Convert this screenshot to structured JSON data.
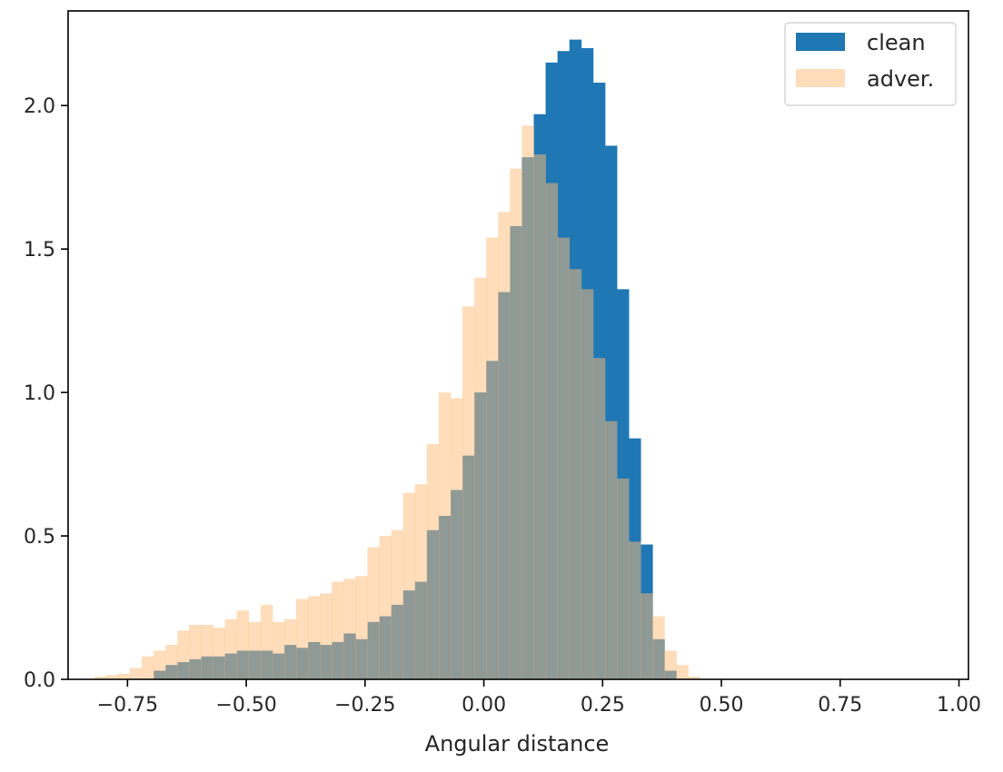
{
  "chart_data": {
    "type": "histogram",
    "title": "",
    "xlabel": "Angular distance",
    "ylabel": "",
    "xlim": [
      -0.875,
      1.02
    ],
    "ylim": [
      0.0,
      2.33
    ],
    "x_ticks": [
      -0.75,
      -0.5,
      -0.25,
      0.0,
      0.25,
      0.5,
      0.75,
      1.0
    ],
    "x_tick_labels": [
      "−0.75",
      "−0.50",
      "−0.25",
      "0.00",
      "0.25",
      "0.50",
      "0.75",
      "1.00"
    ],
    "y_ticks": [
      0.0,
      0.5,
      1.0,
      1.5,
      2.0
    ],
    "y_tick_labels": [
      "0.0",
      "0.5",
      "1.0",
      "1.5",
      "2.0"
    ],
    "grid": false,
    "legend_position": "top-right",
    "colors": {
      "clean": "#1f77b4",
      "adver": "#ffbb78",
      "overlap": "#8c7a5f",
      "axis": "#000000"
    },
    "series": [
      {
        "name": "clean",
        "bin_start": -0.695,
        "bin_width": 0.025,
        "values": [
          0.03,
          0.05,
          0.06,
          0.07,
          0.08,
          0.08,
          0.09,
          0.1,
          0.1,
          0.1,
          0.09,
          0.12,
          0.11,
          0.13,
          0.12,
          0.13,
          0.16,
          0.14,
          0.2,
          0.22,
          0.26,
          0.31,
          0.34,
          0.52,
          0.57,
          0.66,
          0.78,
          1.0,
          1.11,
          1.35,
          1.58,
          1.82,
          1.97,
          2.15,
          2.19,
          2.23,
          2.2,
          2.08,
          1.86,
          1.36,
          0.84,
          0.47,
          0.14,
          0.03
        ]
      },
      {
        "name": "adver.",
        "bin_start": -0.82,
        "bin_width": 0.025,
        "values": [
          0.01,
          0.015,
          0.02,
          0.04,
          0.08,
          0.1,
          0.12,
          0.17,
          0.19,
          0.19,
          0.18,
          0.21,
          0.24,
          0.2,
          0.26,
          0.2,
          0.21,
          0.28,
          0.29,
          0.3,
          0.34,
          0.35,
          0.36,
          0.46,
          0.5,
          0.52,
          0.65,
          0.68,
          0.82,
          1.0,
          0.98,
          1.3,
          1.4,
          1.54,
          1.63,
          1.78,
          1.93,
          1.83,
          1.73,
          1.54,
          1.43,
          1.36,
          1.12,
          0.9,
          0.7,
          0.48,
          0.3,
          0.22,
          0.1,
          0.05,
          0.01
        ]
      }
    ]
  }
}
